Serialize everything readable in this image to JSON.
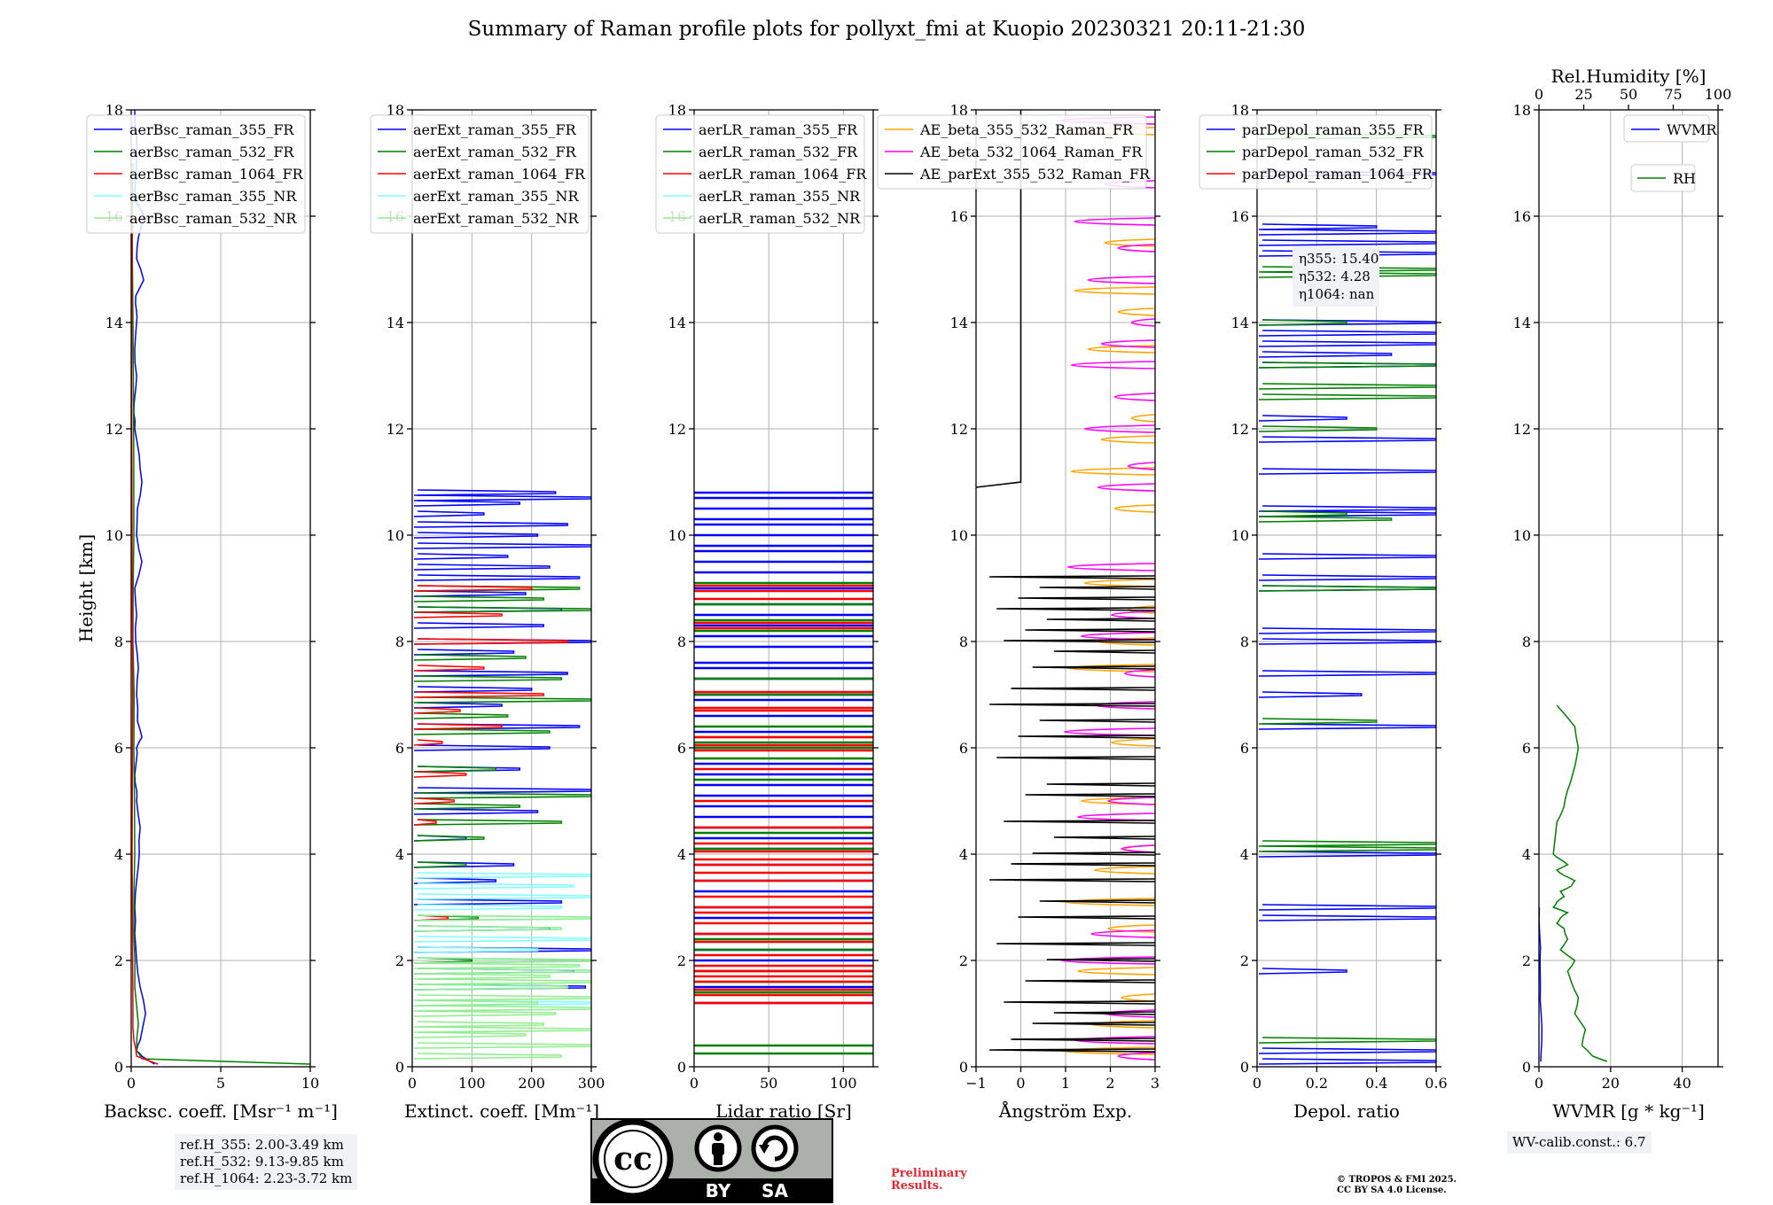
{
  "title": "Summary of Raman profile plots for pollyxt_fmi at Kuopio 20230321 20:11-21:30",
  "ref_heights": [
    "ref.H_355: 2.00-3.49 km",
    "ref.H_532: 9.13-9.85 km",
    "ref.H_1064: 2.23-3.72 km"
  ],
  "eta_box": [
    "η355: 15.40",
    "η532: 4.28",
    "η1064: nan"
  ],
  "wv_calib": "WV-calib.const.: 6.7",
  "preliminary": [
    "Preliminary",
    "Results."
  ],
  "copyright": [
    "© TROPOS & FMI 2025.",
    "CC BY SA 4.0 License."
  ],
  "license_badge": {
    "cc": "cc",
    "by": "BY",
    "sa": "SA"
  },
  "colors": {
    "blue": "#0000ff",
    "green": "#008000",
    "red": "#ff0000",
    "cyan": "#7fffff",
    "lightgreen": "#90ee90",
    "orange": "#ffa500",
    "magenta": "#ff00ff",
    "black": "#000000"
  },
  "chart_data": [
    {
      "type": "line",
      "xlabel": "Backsc. coeff. [Msr⁻¹ m⁻¹]",
      "ylabel": "Height [km]",
      "xlim": [
        0,
        10
      ],
      "ylim": [
        0,
        18
      ],
      "xticks": [
        0,
        5,
        10
      ],
      "yticks": [
        0,
        2,
        4,
        6,
        8,
        10,
        12,
        14,
        16,
        18
      ],
      "grid": true,
      "legend": "top-left",
      "series": [
        {
          "name": "aerBsc_raman_355_FR",
          "color": "blue",
          "style": "profile",
          "x": [
            1.3,
            0.6,
            0.3,
            0.5,
            0.8,
            0.5,
            0.3,
            0.2,
            0.2,
            0.3,
            0.45,
            0.5,
            0.3,
            0.3,
            0.2,
            0.3,
            0.3,
            0.6,
            0.35,
            0.3,
            0.4,
            0.25,
            0.3,
            0.2,
            0.6,
            0.3,
            0.35,
            0.6,
            0.45,
            0.2,
            0.15,
            0.2,
            0.3,
            0.2,
            0.3,
            0.3,
            0.25,
            0.7,
            0.3,
            0.4,
            0.7,
            0.2,
            0.3,
            0.3,
            0.2
          ],
          "y": [
            0.05,
            0.2,
            0.3,
            0.5,
            1,
            1.5,
            2,
            2.5,
            3,
            3.5,
            4,
            4.5,
            5,
            5.2,
            5.5,
            5.8,
            6,
            6.2,
            6.5,
            7,
            7.5,
            8,
            8.5,
            9,
            9.5,
            10,
            10.5,
            11,
            11.5,
            12,
            12.3,
            12.6,
            13,
            13.5,
            14,
            14.2,
            14.5,
            14.8,
            15.2,
            15.6,
            16,
            16.3,
            17,
            17.5,
            18
          ]
        },
        {
          "name": "aerBsc_raman_532_FR",
          "color": "green",
          "style": "profile",
          "x": [
            10,
            0.6,
            0.3,
            0.4,
            0.2,
            0.15,
            0.2,
            0.15,
            0.1,
            0.15,
            0.1,
            0.1
          ],
          "y": [
            0.05,
            0.15,
            0.3,
            0.8,
            1.5,
            2.5,
            4,
            6,
            8,
            10,
            14,
            17
          ]
        },
        {
          "name": "aerBsc_raman_1064_FR",
          "color": "red",
          "style": "profile",
          "x": [
            1.5,
            0.3,
            0.15,
            0.1,
            0.05,
            0.05,
            0.05
          ],
          "y": [
            0.05,
            0.2,
            0.5,
            1,
            4,
            10,
            16
          ]
        },
        {
          "name": "aerBsc_raman_355_NR",
          "color": "cyan",
          "style": "none",
          "x": [],
          "y": []
        },
        {
          "name": "aerBsc_raman_532_NR",
          "color": "lightgreen",
          "style": "none",
          "x": [],
          "y": []
        }
      ]
    },
    {
      "type": "line",
      "xlabel": "Extinct. coeff. [Mm⁻¹]",
      "xlim": [
        0,
        300
      ],
      "ylim": [
        0,
        18
      ],
      "xticks": [
        0,
        100,
        200,
        300
      ],
      "yticks": [
        0,
        2,
        4,
        6,
        8,
        10,
        12,
        14,
        16,
        18
      ],
      "grid": true,
      "legend": "top-left",
      "series": [
        {
          "name": "aerExt_raman_355_FR",
          "color": "blue",
          "style": "spiky",
          "x": [
            240,
            300,
            180,
            120,
            260,
            210,
            300,
            160,
            230,
            280,
            190,
            250,
            220,
            300,
            170,
            260,
            200,
            150,
            280,
            230,
            180,
            300,
            210,
            90,
            170,
            140,
            250,
            230,
            300,
            270,
            290
          ],
          "y": [
            10.8,
            10.7,
            10.6,
            10.4,
            10.2,
            10.0,
            9.8,
            9.6,
            9.4,
            9.2,
            8.9,
            8.6,
            8.3,
            8.0,
            7.8,
            7.4,
            7.1,
            6.8,
            6.4,
            6.0,
            5.6,
            5.2,
            4.8,
            4.3,
            3.8,
            3.5,
            3.1,
            2.6,
            2.2,
            1.8,
            1.5
          ]
        },
        {
          "name": "aerExt_raman_532_FR",
          "color": "green",
          "style": "spiky",
          "x": [
            280,
            220,
            300,
            190,
            250,
            300,
            160,
            230,
            140,
            300,
            180,
            250,
            120,
            90,
            110,
            100
          ],
          "y": [
            9.0,
            8.8,
            8.6,
            7.7,
            7.3,
            6.9,
            6.6,
            6.3,
            5.6,
            5.1,
            4.9,
            4.6,
            4.3,
            3.8,
            2.8,
            2.0
          ]
        },
        {
          "name": "aerExt_raman_1064_FR",
          "color": "red",
          "style": "spiky",
          "x": [
            200,
            150,
            260,
            120,
            220,
            80,
            150,
            50,
            90,
            70,
            40,
            60
          ],
          "y": [
            9.0,
            8.5,
            8.0,
            7.5,
            7.0,
            6.7,
            6.4,
            6.1,
            5.5,
            5.0,
            4.6,
            2.8
          ]
        },
        {
          "name": "aerExt_raman_355_NR",
          "color": "cyan",
          "style": "spiky",
          "x": [
            300,
            270,
            300,
            250,
            300,
            240,
            300,
            210,
            280,
            300,
            200,
            300
          ],
          "y": [
            3.6,
            3.4,
            3.2,
            3.0,
            2.8,
            2.6,
            2.4,
            2.2,
            2.0,
            1.8,
            1.5,
            1.2
          ]
        },
        {
          "name": "aerExt_raman_532_NR",
          "color": "lightgreen",
          "style": "spiky",
          "x": [
            300,
            250,
            300,
            280,
            300,
            230,
            300,
            260,
            300,
            210,
            300,
            240,
            220,
            300,
            190,
            300,
            250
          ],
          "y": [
            2.8,
            2.6,
            2.0,
            1.9,
            1.8,
            1.7,
            1.6,
            1.5,
            1.3,
            1.2,
            1.1,
            1.0,
            0.8,
            0.7,
            0.6,
            0.4,
            0.2
          ]
        }
      ]
    },
    {
      "type": "line",
      "xlabel": "Lidar ratio [Sr]",
      "xlim": [
        0,
        120
      ],
      "ylim": [
        0,
        18
      ],
      "xticks": [
        0,
        50,
        100
      ],
      "yticks": [
        0,
        2,
        4,
        6,
        8,
        10,
        12,
        14,
        16,
        18
      ],
      "grid": true,
      "legend": "top-left",
      "series": [
        {
          "name": "aerLR_raman_355_FR",
          "color": "blue",
          "style": "bands",
          "y": [
            10.8,
            10.7,
            10.5,
            10.3,
            10.2,
            10.0,
            9.8,
            9.7,
            9.5,
            9.3,
            9.0,
            8.7,
            8.5,
            8.3,
            8.1,
            7.9,
            7.6,
            7.5,
            7.3,
            7.0,
            6.9,
            6.6,
            6.3,
            6.0,
            5.7,
            5.5,
            5.3,
            5.1,
            4.9,
            4.7,
            4.5,
            4.3,
            4.1,
            3.8,
            3.5,
            3.3,
            3.0,
            2.8,
            2.5,
            2.2,
            2.0,
            1.8,
            1.5,
            1.2
          ]
        },
        {
          "name": "aerLR_raman_532_FR",
          "color": "green",
          "style": "bands",
          "y": [
            9.1,
            8.7,
            8.4,
            8.2,
            7.3,
            7.0,
            6.4,
            6.2,
            6.1,
            6.0,
            5.8,
            5.4,
            4.4,
            4.1,
            2.4,
            2.2,
            1.8,
            1.6,
            1.4,
            0.4,
            0.25
          ]
        },
        {
          "name": "aerLR_raman_1064_FR",
          "color": "red",
          "style": "bands",
          "y": [
            9.05,
            8.95,
            8.8,
            8.35,
            8.25,
            7.05,
            6.75,
            6.7,
            6.2,
            6.05,
            5.95,
            5.6,
            5.0,
            4.5,
            4.2,
            4.05,
            3.9,
            3.8,
            3.65,
            3.5,
            3.2,
            3.0,
            2.9,
            2.7,
            2.5,
            2.35,
            2.1,
            1.9,
            1.8,
            1.7,
            1.6,
            1.45,
            1.35,
            1.2
          ]
        },
        {
          "name": "aerLR_raman_355_NR",
          "color": "cyan",
          "style": "none",
          "y": []
        },
        {
          "name": "aerLR_raman_532_NR",
          "color": "lightgreen",
          "style": "none",
          "y": []
        }
      ]
    },
    {
      "type": "line",
      "xlabel": "Ångström Exp.",
      "xlim": [
        -1,
        3
      ],
      "ylim": [
        0,
        18
      ],
      "xticks": [
        -1,
        0,
        1,
        2,
        3
      ],
      "yticks": [
        0,
        2,
        4,
        6,
        8,
        10,
        12,
        14,
        16,
        18
      ],
      "grid": true,
      "legend": "top-left",
      "series": [
        {
          "name": "AE_beta_355_532_Raman_FR",
          "color": "orange",
          "style": "loops",
          "y": [
            17.6,
            15.5,
            14.6,
            14.2,
            13.5,
            12.2,
            11.8,
            11.2,
            10.5,
            9.1,
            8.6,
            8.0,
            7.5,
            6.1,
            5.0,
            4.1,
            3.7,
            3.1,
            2.6,
            1.8,
            1.3,
            0.8,
            0.3
          ]
        },
        {
          "name": "AE_beta_532_1064_Raman_FR",
          "color": "magenta",
          "style": "loops",
          "y": [
            17.8,
            16.6,
            15.9,
            15.4,
            14.8,
            14.0,
            13.6,
            13.2,
            12.6,
            12.0,
            11.3,
            10.9,
            9.4,
            8.5,
            8.1,
            7.4,
            6.8,
            6.3,
            5.0,
            4.7,
            4.1,
            2.5,
            2.0,
            1.0,
            0.5,
            0.2
          ]
        },
        {
          "name": "AE_parExt_355_532_Raman_FR",
          "color": "black",
          "style": "steps",
          "y": [
            9.2,
            9.0,
            8.8,
            8.6,
            8.4,
            8.2,
            8.0,
            7.8,
            7.5,
            7.1,
            6.8,
            6.5,
            6.2,
            5.8,
            5.3,
            5.1,
            4.6,
            4.3,
            4.0,
            3.8,
            3.5,
            3.1,
            2.8,
            2.3,
            2.0,
            1.6,
            1.2,
            1.0,
            0.8,
            0.5,
            0.3
          ]
        }
      ]
    },
    {
      "type": "line",
      "xlabel": "Depol. ratio",
      "xlim": [
        0.0,
        0.6
      ],
      "ylim": [
        0,
        18
      ],
      "xticks": [
        0.0,
        0.2,
        0.4,
        0.6
      ],
      "yticks": [
        0,
        2,
        4,
        6,
        8,
        10,
        12,
        14,
        16,
        18
      ],
      "grid": true,
      "legend": "top-left",
      "series": [
        {
          "name": "parDepol_raman_355_FR",
          "color": "blue",
          "style": "spiky",
          "x": [
            0.6,
            0.4,
            0.6,
            0.6,
            0.6,
            0.6,
            0.6,
            0.6,
            0.45,
            0.6,
            0.3,
            0.6,
            0.6,
            0.6,
            0.6,
            0.6,
            0.6,
            0.6,
            0.6,
            0.6,
            0.6,
            0.35,
            0.6,
            0.6,
            0.6,
            0.6,
            0.3,
            0.6,
            0.6
          ],
          "y": [
            16.8,
            15.8,
            15.7,
            15.5,
            15.3,
            14.0,
            13.8,
            13.6,
            13.4,
            13.2,
            12.2,
            11.8,
            11.2,
            10.5,
            10.4,
            9.6,
            9.2,
            9.0,
            8.2,
            8.0,
            7.4,
            7.0,
            6.4,
            4.0,
            3.0,
            2.8,
            1.8,
            0.3,
            0.1
          ]
        },
        {
          "name": "parDepol_raman_532_FR",
          "color": "green",
          "style": "spiky",
          "x": [
            0.6,
            0.6,
            0.6,
            0.3,
            0.6,
            0.6,
            0.6,
            0.4,
            0.3,
            0.45,
            0.6,
            0.4,
            0.6,
            0.6,
            0.6
          ],
          "y": [
            17.5,
            15.0,
            14.9,
            14.0,
            13.2,
            12.8,
            12.6,
            12.0,
            10.4,
            10.3,
            9.0,
            6.5,
            4.2,
            4.1,
            0.5
          ]
        },
        {
          "name": "parDepol_raman_1064_FR",
          "color": "red",
          "style": "none",
          "x": [],
          "y": []
        }
      ]
    },
    {
      "type": "line",
      "xlabel": "WVMR [g * kg⁻¹]",
      "xlim": [
        0,
        50
      ],
      "ylim": [
        0,
        18
      ],
      "xticks": [
        0,
        20,
        40
      ],
      "yticks": [
        0,
        2,
        4,
        6,
        8,
        10,
        12,
        14,
        16,
        18
      ],
      "top_axis": {
        "label": "Rel.Humidity [%]",
        "xlim": [
          0,
          100
        ],
        "xticks": [
          0,
          25,
          50,
          75,
          100
        ]
      },
      "grid": true,
      "legend": "top-right",
      "series": [
        {
          "name": "WVMR",
          "color": "blue",
          "style": "profile",
          "x": [
            0.5,
            0.8,
            0.6,
            0.4,
            0.3,
            0.2,
            0.1
          ],
          "y": [
            0.1,
            0.5,
            1.0,
            1.5,
            2.0,
            2.5,
            3.0
          ]
        },
        {
          "name": "RH",
          "color": "green",
          "style": "profile",
          "x": [
            19,
            15,
            12,
            13,
            10,
            11,
            9,
            8,
            10,
            6,
            8,
            7,
            5,
            6,
            8,
            4,
            5,
            7,
            6,
            9,
            10,
            7,
            5,
            8,
            6,
            4,
            5,
            7,
            8,
            9,
            11,
            10,
            5
          ],
          "y": [
            0.1,
            0.2,
            0.4,
            0.7,
            1.0,
            1.3,
            1.6,
            1.8,
            2.0,
            2.2,
            2.4,
            2.6,
            2.7,
            2.8,
            2.9,
            3.0,
            3.1,
            3.2,
            3.3,
            3.4,
            3.5,
            3.6,
            3.7,
            3.8,
            3.9,
            4.0,
            4.6,
            4.9,
            5.2,
            5.4,
            6.0,
            6.4,
            6.8
          ]
        }
      ]
    }
  ]
}
